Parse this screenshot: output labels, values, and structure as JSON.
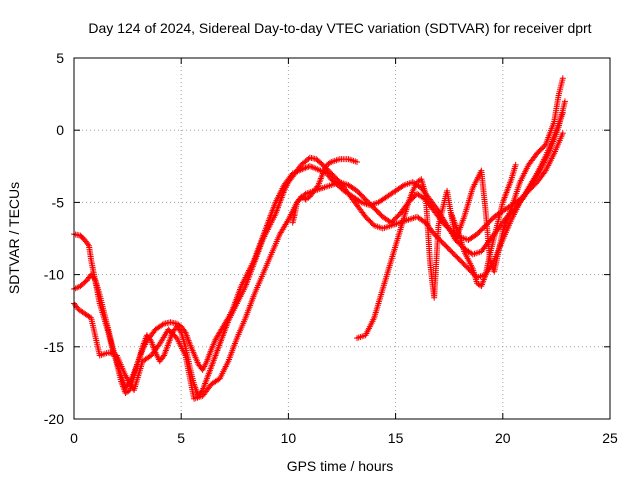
{
  "chart_data": {
    "type": "scatter",
    "title": "Day 124 of 2024, Sidereal Day-to-day VTEC variation (SDTVAR) for receiver dprt",
    "xlabel": "GPS time / hours",
    "ylabel": "SDTVAR / TECUs",
    "xlim": [
      0,
      25
    ],
    "ylim": [
      -20,
      5
    ],
    "xticks": [
      "0",
      "5",
      "10",
      "15",
      "20",
      "25"
    ],
    "yticks": [
      "5",
      "0",
      "-5",
      "-10",
      "-15",
      "-20"
    ],
    "grid": true,
    "marker": "plus",
    "color": "#ff0000",
    "series": [
      {
        "points": [
          [
            0.0,
            -7.2
          ],
          [
            0.3,
            -7.3
          ],
          [
            0.5,
            -7.6
          ],
          [
            0.7,
            -8.0
          ],
          [
            0.8,
            -9.0
          ],
          [
            1.0,
            -10.5
          ],
          [
            1.2,
            -12.0
          ],
          [
            1.4,
            -13.0
          ],
          [
            1.6,
            -14.0
          ],
          [
            1.8,
            -15.2
          ],
          [
            2.0,
            -16.0
          ],
          [
            2.2,
            -17.0
          ],
          [
            2.4,
            -17.8
          ],
          [
            2.6,
            -17.5
          ],
          [
            2.8,
            -16.8
          ],
          [
            3.0,
            -16.0
          ],
          [
            3.2,
            -15.2
          ],
          [
            3.4,
            -14.6
          ],
          [
            3.6,
            -14.2
          ],
          [
            3.8,
            -13.8
          ],
          [
            4.0,
            -13.6
          ],
          [
            4.2,
            -13.4
          ],
          [
            4.5,
            -13.3
          ],
          [
            4.8,
            -13.4
          ],
          [
            5.0,
            -13.6
          ],
          [
            5.2,
            -14.0
          ],
          [
            5.4,
            -14.8
          ],
          [
            5.6,
            -15.5
          ],
          [
            5.8,
            -16.2
          ],
          [
            6.0,
            -16.6
          ],
          [
            6.2,
            -16.0
          ],
          [
            6.4,
            -15.2
          ],
          [
            6.6,
            -14.5
          ],
          [
            6.8,
            -14.0
          ],
          [
            7.0,
            -13.5
          ],
          [
            7.2,
            -13.0
          ],
          [
            7.4,
            -12.4
          ],
          [
            7.6,
            -11.6
          ],
          [
            7.8,
            -10.8
          ],
          [
            8.0,
            -10.2
          ],
          [
            8.2,
            -9.6
          ],
          [
            8.4,
            -9.0
          ],
          [
            8.6,
            -8.2
          ],
          [
            8.8,
            -7.4
          ],
          [
            9.0,
            -6.6
          ],
          [
            9.2,
            -5.8
          ],
          [
            9.4,
            -5.0
          ],
          [
            9.6,
            -4.4
          ],
          [
            9.8,
            -3.8
          ],
          [
            10.0,
            -3.4
          ],
          [
            10.2,
            -3.0
          ],
          [
            10.5,
            -2.8
          ],
          [
            10.8,
            -2.6
          ],
          [
            11.0,
            -2.5
          ],
          [
            11.2,
            -2.6
          ],
          [
            11.5,
            -2.8
          ],
          [
            11.8,
            -3.0
          ],
          [
            12.0,
            -3.4
          ],
          [
            12.3,
            -3.8
          ],
          [
            12.6,
            -4.2
          ],
          [
            13.0,
            -4.6
          ],
          [
            13.4,
            -5.0
          ],
          [
            13.8,
            -5.2
          ],
          [
            14.2,
            -5.0
          ],
          [
            14.6,
            -4.6
          ],
          [
            15.0,
            -4.2
          ],
          [
            15.4,
            -3.8
          ],
          [
            15.8,
            -3.6
          ],
          [
            16.2,
            -4.0
          ],
          [
            16.6,
            -4.8
          ],
          [
            17.0,
            -5.6
          ],
          [
            17.4,
            -6.6
          ],
          [
            17.8,
            -7.6
          ],
          [
            18.2,
            -8.2
          ],
          [
            18.6,
            -8.6
          ],
          [
            19.0,
            -8.4
          ],
          [
            19.4,
            -7.6
          ],
          [
            19.8,
            -6.8
          ],
          [
            20.2,
            -6.0
          ],
          [
            20.6,
            -5.4
          ],
          [
            21.0,
            -4.6
          ],
          [
            21.4,
            -3.6
          ],
          [
            21.8,
            -2.6
          ],
          [
            22.2,
            -1.4
          ],
          [
            22.6,
            0.2
          ],
          [
            22.9,
            2.0
          ]
        ]
      },
      {
        "points": [
          [
            0.0,
            -11.0
          ],
          [
            0.3,
            -10.8
          ],
          [
            0.6,
            -10.4
          ],
          [
            0.8,
            -10.0
          ],
          [
            1.0,
            -10.4
          ],
          [
            1.2,
            -11.4
          ],
          [
            1.4,
            -12.6
          ],
          [
            1.6,
            -13.8
          ],
          [
            1.8,
            -15.0
          ],
          [
            2.0,
            -16.2
          ],
          [
            2.2,
            -17.4
          ],
          [
            2.4,
            -18.2
          ],
          [
            2.6,
            -18.0
          ],
          [
            2.8,
            -17.0
          ],
          [
            3.0,
            -16.0
          ],
          [
            3.2,
            -15.0
          ],
          [
            3.4,
            -14.2
          ],
          [
            3.6,
            -14.6
          ],
          [
            3.8,
            -15.4
          ],
          [
            4.0,
            -16.0
          ],
          [
            4.2,
            -15.6
          ],
          [
            4.4,
            -14.8
          ],
          [
            4.6,
            -14.0
          ],
          [
            4.8,
            -13.6
          ],
          [
            5.0,
            -14.0
          ],
          [
            5.2,
            -15.0
          ],
          [
            5.4,
            -16.4
          ],
          [
            5.6,
            -17.6
          ],
          [
            5.8,
            -18.4
          ],
          [
            6.0,
            -18.0
          ],
          [
            6.2,
            -17.2
          ],
          [
            6.4,
            -16.4
          ],
          [
            6.6,
            -15.6
          ],
          [
            6.8,
            -14.8
          ],
          [
            7.0,
            -14.0
          ],
          [
            7.2,
            -13.2
          ],
          [
            7.4,
            -12.6
          ],
          [
            7.6,
            -12.0
          ],
          [
            7.8,
            -11.4
          ],
          [
            8.0,
            -10.8
          ],
          [
            8.2,
            -10.0
          ],
          [
            8.4,
            -9.2
          ],
          [
            8.6,
            -8.4
          ],
          [
            8.8,
            -7.6
          ],
          [
            9.0,
            -7.0
          ],
          [
            9.2,
            -6.4
          ],
          [
            9.4,
            -5.8
          ],
          [
            9.6,
            -5.0
          ],
          [
            9.8,
            -4.2
          ],
          [
            10.0,
            -3.6
          ],
          [
            10.3,
            -3.0
          ],
          [
            10.6,
            -2.4
          ],
          [
            11.0,
            -1.9
          ],
          [
            11.3,
            -2.0
          ],
          [
            11.6,
            -2.4
          ],
          [
            12.0,
            -3.0
          ],
          [
            12.4,
            -3.6
          ],
          [
            12.8,
            -4.4
          ],
          [
            13.2,
            -5.2
          ],
          [
            13.6,
            -6.0
          ],
          [
            14.0,
            -6.6
          ],
          [
            14.4,
            -6.8
          ],
          [
            14.8,
            -6.6
          ],
          [
            15.2,
            -6.4
          ],
          [
            15.6,
            -6.2
          ],
          [
            16.0,
            -6.0
          ],
          [
            16.4,
            -6.4
          ],
          [
            16.8,
            -7.2
          ],
          [
            17.2,
            -7.8
          ],
          [
            17.6,
            -8.4
          ],
          [
            18.0,
            -9.0
          ],
          [
            18.4,
            -9.6
          ],
          [
            18.8,
            -10.2
          ],
          [
            19.2,
            -10.0
          ],
          [
            19.6,
            -9.0
          ],
          [
            20.0,
            -7.6
          ],
          [
            20.4,
            -6.2
          ],
          [
            20.8,
            -5.0
          ],
          [
            21.2,
            -4.0
          ],
          [
            21.6,
            -3.0
          ],
          [
            22.0,
            -1.8
          ],
          [
            22.4,
            -0.4
          ],
          [
            22.8,
            1.2
          ]
        ]
      },
      {
        "points": [
          [
            0.0,
            -12.0
          ],
          [
            0.2,
            -12.4
          ],
          [
            0.4,
            -12.6
          ],
          [
            0.6,
            -12.8
          ],
          [
            0.8,
            -13.0
          ],
          [
            1.2,
            -15.6
          ],
          [
            1.6,
            -15.4
          ],
          [
            2.0,
            -15.6
          ],
          [
            2.4,
            -17.0
          ],
          [
            2.8,
            -18.0
          ],
          [
            3.2,
            -16.0
          ],
          [
            3.6,
            -15.6
          ],
          [
            4.0,
            -14.8
          ],
          [
            4.4,
            -13.8
          ],
          [
            4.8,
            -14.4
          ],
          [
            5.2,
            -15.6
          ],
          [
            5.6,
            -18.6
          ],
          [
            6.0,
            -18.4
          ],
          [
            6.4,
            -17.6
          ],
          [
            6.8,
            -17.2
          ],
          [
            7.2,
            -16.0
          ],
          [
            7.6,
            -14.4
          ],
          [
            8.0,
            -13.0
          ],
          [
            8.4,
            -11.4
          ],
          [
            8.8,
            -10.0
          ],
          [
            9.2,
            -8.6
          ],
          [
            9.6,
            -7.2
          ],
          [
            10.0,
            -6.2
          ],
          [
            10.4,
            -5.0
          ],
          [
            10.8,
            -4.4
          ],
          [
            11.2,
            -4.2
          ],
          [
            11.6,
            -4.0
          ],
          [
            12.0,
            -3.8
          ],
          [
            12.4,
            -3.6
          ],
          [
            12.8,
            -3.8
          ],
          [
            13.2,
            -4.2
          ],
          [
            13.6,
            -4.8
          ],
          [
            14.0,
            -5.4
          ],
          [
            14.4,
            -6.0
          ],
          [
            14.8,
            -6.4
          ],
          [
            15.2,
            -5.8
          ],
          [
            15.6,
            -5.0
          ],
          [
            16.0,
            -4.4
          ],
          [
            16.4,
            -4.8
          ],
          [
            16.8,
            -5.6
          ],
          [
            17.2,
            -6.4
          ],
          [
            17.6,
            -7.0
          ],
          [
            18.0,
            -7.4
          ],
          [
            18.4,
            -7.6
          ],
          [
            18.8,
            -7.2
          ],
          [
            19.2,
            -6.6
          ],
          [
            19.6,
            -6.0
          ],
          [
            20.0,
            -5.6
          ],
          [
            20.4,
            -5.2
          ],
          [
            20.8,
            -4.8
          ],
          [
            21.2,
            -4.2
          ],
          [
            21.6,
            -3.6
          ],
          [
            22.0,
            -2.8
          ],
          [
            22.4,
            -1.6
          ],
          [
            22.8,
            -0.2
          ]
        ]
      },
      {
        "points": [
          [
            13.2,
            -14.4
          ],
          [
            13.6,
            -14.2
          ],
          [
            13.8,
            -13.6
          ],
          [
            14.0,
            -13.0
          ],
          [
            14.2,
            -12.0
          ],
          [
            14.4,
            -11.0
          ],
          [
            14.6,
            -10.0
          ],
          [
            14.8,
            -9.0
          ],
          [
            15.0,
            -8.0
          ],
          [
            15.2,
            -7.0
          ],
          [
            15.4,
            -6.0
          ],
          [
            15.6,
            -5.0
          ],
          [
            15.8,
            -4.2
          ],
          [
            16.0,
            -3.6
          ],
          [
            16.2,
            -3.4
          ],
          [
            16.4,
            -4.4
          ],
          [
            16.6,
            -9.0
          ],
          [
            16.7,
            -10.4
          ],
          [
            16.8,
            -11.6
          ],
          [
            17.0,
            -6.6
          ],
          [
            17.4,
            -4.2
          ],
          [
            17.8,
            -7.6
          ],
          [
            18.2,
            -6.0
          ],
          [
            18.6,
            -4.0
          ],
          [
            19.0,
            -2.8
          ],
          [
            19.2,
            -5.6
          ],
          [
            19.4,
            -9.0
          ],
          [
            19.6,
            -9.8
          ],
          [
            20.0,
            -7.0
          ],
          [
            20.4,
            -5.4
          ],
          [
            20.8,
            -3.6
          ],
          [
            21.2,
            -2.4
          ],
          [
            21.6,
            -1.6
          ],
          [
            22.0,
            -1.0
          ],
          [
            22.4,
            0.6
          ],
          [
            22.6,
            2.4
          ],
          [
            22.8,
            3.6
          ]
        ]
      },
      {
        "points": [
          [
            10.2,
            -6.4
          ],
          [
            10.3,
            -5.8
          ],
          [
            10.4,
            -5.0
          ],
          [
            10.6,
            -4.6
          ],
          [
            10.8,
            -4.8
          ],
          [
            11.0,
            -4.6
          ],
          [
            11.2,
            -4.2
          ],
          [
            11.4,
            -3.8
          ],
          [
            11.6,
            -3.0
          ],
          [
            11.8,
            -2.4
          ],
          [
            12.0,
            -2.2
          ],
          [
            12.4,
            -2.0
          ],
          [
            12.8,
            -2.0
          ],
          [
            13.2,
            -2.2
          ]
        ]
      },
      {
        "points": [
          [
            17.6,
            -5.8
          ],
          [
            17.8,
            -6.6
          ],
          [
            18.0,
            -7.4
          ],
          [
            18.2,
            -8.4
          ],
          [
            18.4,
            -9.0
          ],
          [
            18.6,
            -9.6
          ],
          [
            18.8,
            -10.6
          ],
          [
            19.0,
            -10.8
          ],
          [
            19.2,
            -10.0
          ],
          [
            19.4,
            -8.6
          ],
          [
            19.6,
            -7.4
          ],
          [
            19.8,
            -6.2
          ],
          [
            20.0,
            -5.0
          ],
          [
            20.2,
            -4.2
          ],
          [
            20.4,
            -3.4
          ],
          [
            20.6,
            -2.4
          ]
        ]
      }
    ]
  }
}
